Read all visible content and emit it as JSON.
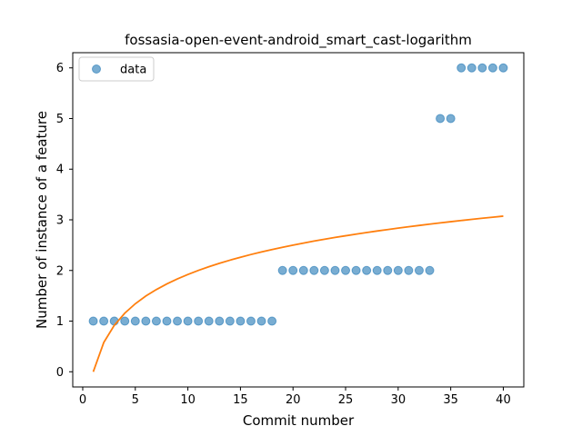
{
  "chart_data": {
    "type": "scatter",
    "title": "fossasia-open-event-android_smart_cast-logarithm",
    "xlabel": "Commit number",
    "ylabel": "Number of instance of a feature",
    "xlim": [
      -0.95,
      41.95
    ],
    "ylim": [
      -0.3,
      6.3
    ],
    "xticks": [
      0,
      5,
      10,
      15,
      20,
      25,
      30,
      35,
      40
    ],
    "yticks": [
      0,
      1,
      2,
      3,
      4,
      5,
      6
    ],
    "grid": false,
    "legend_position": "upper-left",
    "series": [
      {
        "name": "data",
        "kind": "scatter",
        "color": "#1f77b4",
        "x": [
          1,
          2,
          3,
          4,
          5,
          6,
          7,
          8,
          9,
          10,
          11,
          12,
          13,
          14,
          15,
          16,
          17,
          18,
          19,
          20,
          21,
          22,
          23,
          24,
          25,
          26,
          27,
          28,
          29,
          30,
          31,
          32,
          33,
          34,
          35,
          36,
          37,
          38,
          39,
          40
        ],
        "y": [
          1,
          1,
          1,
          1,
          1,
          1,
          1,
          1,
          1,
          1,
          1,
          1,
          1,
          1,
          1,
          1,
          1,
          1,
          2,
          2,
          2,
          2,
          2,
          2,
          2,
          2,
          2,
          2,
          2,
          2,
          2,
          2,
          2,
          5,
          5,
          6,
          6,
          6,
          6,
          6
        ]
      },
      {
        "kind": "line",
        "color": "#ff7f0e",
        "x": [
          1,
          2,
          3,
          4,
          5,
          6,
          7,
          8,
          9,
          10,
          11,
          12,
          13,
          14,
          15,
          16,
          17,
          18,
          19,
          20,
          21,
          22,
          23,
          24,
          25,
          26,
          27,
          28,
          29,
          30,
          31,
          32,
          33,
          34,
          35,
          36,
          37,
          38,
          39,
          40
        ],
        "y": [
          0.0,
          0.578,
          0.917,
          1.157,
          1.343,
          1.495,
          1.623,
          1.735,
          1.833,
          1.921,
          2.001,
          2.074,
          2.141,
          2.203,
          2.261,
          2.315,
          2.366,
          2.413,
          2.458,
          2.501,
          2.541,
          2.58,
          2.616,
          2.652,
          2.685,
          2.718,
          2.749,
          2.779,
          2.808,
          2.836,
          2.863,
          2.889,
          2.915,
          2.939,
          2.963,
          2.986,
          3.009,
          3.031,
          3.052,
          3.073
        ]
      }
    ]
  }
}
